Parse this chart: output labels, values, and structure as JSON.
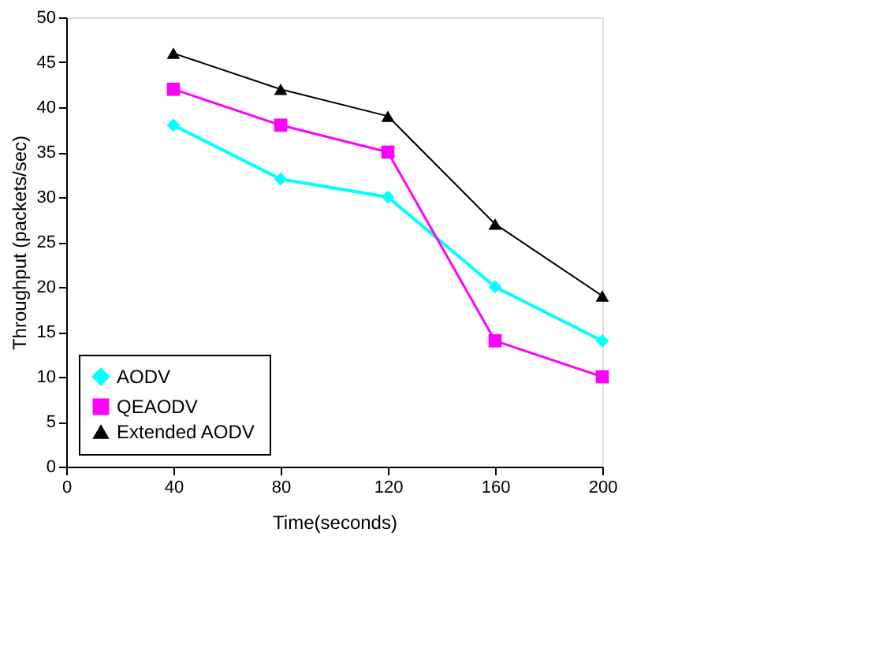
{
  "chart_data": {
    "type": "line",
    "xlabel": "Time(seconds)",
    "ylabel": "Throughput (packets/sec)",
    "x": [
      40,
      80,
      120,
      160,
      200
    ],
    "series": [
      {
        "name": "AODV",
        "color": "#00ffff",
        "marker": "diamond",
        "values": [
          38,
          32,
          30,
          20,
          14
        ]
      },
      {
        "name": "QEAODV",
        "color": "#ff00ff",
        "marker": "square",
        "values": [
          42,
          38,
          35,
          14,
          10
        ]
      },
      {
        "name": "Extended AODV",
        "color": "#000000",
        "marker": "triangle",
        "values": [
          46,
          42,
          39,
          27,
          19
        ]
      }
    ],
    "xlim": [
      0,
      200
    ],
    "xticks": [
      0,
      40,
      80,
      120,
      160,
      200
    ],
    "ylim": [
      0,
      50
    ],
    "yticks": [
      0,
      5,
      10,
      15,
      20,
      25,
      30,
      35,
      40,
      45,
      50
    ],
    "grid": false,
    "legend": "bottom left"
  }
}
